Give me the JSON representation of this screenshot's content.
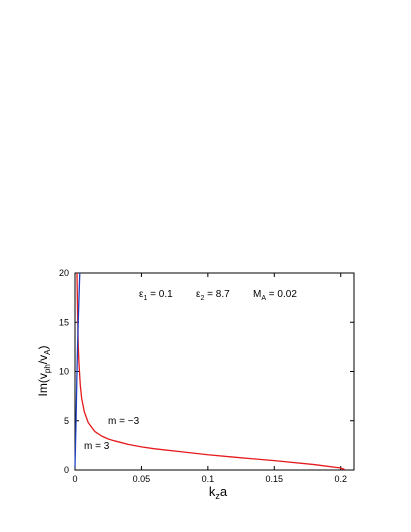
{
  "chart_data": {
    "type": "line",
    "xlabel": {
      "main": "k",
      "sub": "z",
      "tail": "a"
    },
    "ylabel": {
      "pre": "Im(v",
      "sub1": "ph",
      "mid": "/v",
      "sub2": "A",
      "post": ")"
    },
    "xlim": [
      0,
      0.21
    ],
    "ylim": [
      0,
      20
    ],
    "xticks": [
      0,
      0.05,
      0.1,
      0.15,
      0.2
    ],
    "xtick_labels": [
      "0",
      "0.05",
      "0.1",
      "0.15",
      "0.2"
    ],
    "yticks": [
      0,
      5,
      10,
      15,
      20
    ],
    "ytick_labels": [
      "0",
      "5",
      "10",
      "15",
      "20"
    ],
    "annotations": [
      {
        "main": "ε",
        "sub": "1",
        "value": " = 0.1"
      },
      {
        "main": "ε",
        "sub": "2",
        "value": " = 8.7"
      },
      {
        "main": "M",
        "sub": "A",
        "value": " = 0.02"
      }
    ],
    "series": [
      {
        "name": "m = −3",
        "color": "#e41a1c",
        "x": [
          0.0015,
          0.002,
          0.0025,
          0.003,
          0.004,
          0.005,
          0.007,
          0.01,
          0.015,
          0.02,
          0.025,
          0.03,
          0.04,
          0.05,
          0.06,
          0.08,
          0.1,
          0.12,
          0.15,
          0.18,
          0.2,
          0.203
        ],
        "y": [
          20,
          15.5,
          12.5,
          10.8,
          8.6,
          7.3,
          5.9,
          4.8,
          3.9,
          3.45,
          3.15,
          2.95,
          2.6,
          2.35,
          2.15,
          1.85,
          1.55,
          1.3,
          0.95,
          0.55,
          0.2,
          0.05
        ]
      },
      {
        "name": "m = 3",
        "color": "#1f3fbf",
        "x": [
          0,
          0.0008,
          0.0015,
          0.0022,
          0.003,
          0.0036
        ],
        "y": [
          0.3,
          5,
          10,
          14,
          17.5,
          20
        ]
      }
    ],
    "series_labels": [
      "m = −3",
      "m = 3"
    ]
  }
}
